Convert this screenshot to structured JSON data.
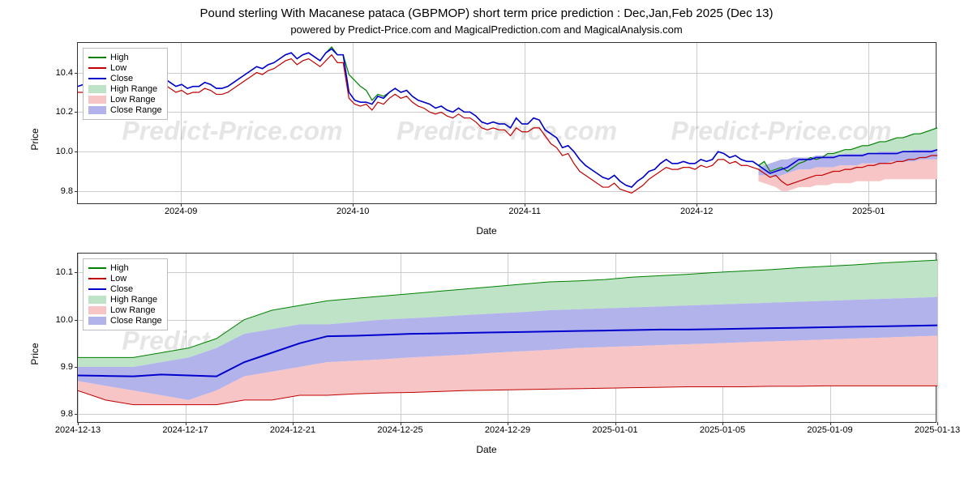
{
  "title": "Pound sterling With Macanese pataca (GBPMOP) short term price prediction : Dec,Jan,Feb 2025 (Dec 13)",
  "subtitle": "powered by Predict-Price.com and MagicalPrediction.com and MagicalAnalysis.com",
  "watermark_text": "Predict-Price.com",
  "colors": {
    "high_line": "#008000",
    "low_line": "#c00000",
    "close_line": "#0000cc",
    "high_range": "#bfe3c7",
    "low_range": "#f7c5c5",
    "close_range": "#b3b3ec",
    "grid": "#cccccc",
    "border": "#333333",
    "bg": "#ffffff",
    "text": "#000000"
  },
  "legend_labels": {
    "high": "High",
    "low": "Low",
    "close": "Close",
    "high_range": "High Range",
    "low_range": "Low Range",
    "close_range": "Close Range"
  },
  "axis_labels": {
    "x": "Date",
    "y": "Price"
  },
  "chart1": {
    "type": "line+range",
    "ylim": [
      9.73,
      10.55
    ],
    "yticks": [
      9.8,
      10.0,
      10.2,
      10.4
    ],
    "ytick_labels": [
      "9.8",
      "10.0",
      "10.2",
      "10.4"
    ],
    "xticks": [
      "2024-09",
      "2024-10",
      "2024-11",
      "2024-12",
      "2025-01"
    ],
    "n_points": 150,
    "high": [
      10.33,
      10.34,
      10.32,
      10.33,
      10.3,
      10.29,
      10.34,
      10.33,
      10.34,
      10.3,
      10.3,
      10.33,
      10.36,
      10.34,
      10.38,
      10.37,
      10.35,
      10.33,
      10.34,
      10.32,
      10.33,
      10.33,
      10.35,
      10.34,
      10.32,
      10.32,
      10.33,
      10.35,
      10.37,
      10.39,
      10.41,
      10.43,
      10.42,
      10.44,
      10.45,
      10.47,
      10.49,
      10.5,
      10.47,
      10.49,
      10.5,
      10.48,
      10.46,
      10.5,
      10.53,
      10.49,
      10.49,
      10.39,
      10.36,
      10.33,
      10.31,
      10.26,
      10.29,
      10.28,
      10.3,
      10.32,
      10.3,
      10.31,
      10.28,
      10.26,
      10.25,
      10.24,
      10.22,
      10.23,
      10.21,
      10.2,
      10.22,
      10.2,
      10.2,
      10.18,
      10.15,
      10.14,
      10.15,
      10.14,
      10.14,
      10.12,
      10.17,
      10.14,
      10.14,
      10.17,
      10.16,
      10.11,
      10.09,
      10.07,
      10.02,
      10.03,
      10.0,
      9.96,
      9.93,
      9.91,
      9.89,
      9.87,
      9.86,
      9.88,
      9.85,
      9.83,
      9.82,
      9.85,
      9.87,
      9.9,
      9.91,
      9.94,
      9.96,
      9.94,
      9.94,
      9.95,
      9.94,
      9.94,
      9.96,
      9.95,
      9.96,
      10.0,
      9.99,
      9.97,
      9.98,
      9.96,
      9.95,
      9.95,
      9.93,
      9.95,
      9.9,
      9.91,
      9.92,
      9.9,
      9.92,
      9.94,
      9.95,
      9.97,
      9.96,
      9.97,
      9.99,
      9.99,
      10.0,
      10.01,
      10.01,
      10.02,
      10.03,
      10.03,
      10.04,
      10.05,
      10.05,
      10.06,
      10.07,
      10.07,
      10.08,
      10.09,
      10.09,
      10.1,
      10.11,
      10.12
    ],
    "low": [
      10.3,
      10.3,
      10.29,
      10.29,
      10.27,
      10.24,
      10.27,
      10.3,
      10.31,
      10.27,
      10.28,
      10.3,
      10.33,
      10.31,
      10.35,
      10.34,
      10.32,
      10.3,
      10.31,
      10.29,
      10.3,
      10.3,
      10.32,
      10.31,
      10.29,
      10.29,
      10.3,
      10.32,
      10.34,
      10.36,
      10.38,
      10.4,
      10.39,
      10.41,
      10.42,
      10.44,
      10.46,
      10.47,
      10.44,
      10.46,
      10.47,
      10.45,
      10.43,
      10.46,
      10.49,
      10.45,
      10.45,
      10.27,
      10.24,
      10.23,
      10.24,
      10.21,
      10.25,
      10.24,
      10.27,
      10.29,
      10.27,
      10.28,
      10.25,
      10.23,
      10.22,
      10.2,
      10.19,
      10.2,
      10.18,
      10.17,
      10.19,
      10.17,
      10.17,
      10.15,
      10.12,
      10.11,
      10.12,
      10.11,
      10.11,
      10.08,
      10.12,
      10.1,
      10.1,
      10.12,
      10.12,
      10.08,
      10.04,
      10.02,
      9.98,
      9.99,
      9.94,
      9.9,
      9.88,
      9.86,
      9.84,
      9.82,
      9.82,
      9.84,
      9.81,
      9.8,
      9.79,
      9.81,
      9.83,
      9.86,
      9.88,
      9.9,
      9.92,
      9.91,
      9.91,
      9.92,
      9.92,
      9.91,
      9.93,
      9.92,
      9.93,
      9.96,
      9.96,
      9.94,
      9.95,
      9.93,
      9.93,
      9.92,
      9.91,
      9.89,
      9.87,
      9.88,
      9.85,
      9.83,
      9.84,
      9.85,
      9.86,
      9.87,
      9.88,
      9.88,
      9.89,
      9.9,
      9.9,
      9.91,
      9.91,
      9.92,
      9.92,
      9.93,
      9.93,
      9.94,
      9.94,
      9.94,
      9.95,
      9.95,
      9.96,
      9.96,
      9.97,
      9.97,
      9.98,
      9.98
    ],
    "close": [
      10.33,
      10.34,
      10.32,
      10.33,
      10.3,
      10.26,
      10.27,
      10.33,
      10.34,
      10.3,
      10.3,
      10.33,
      10.36,
      10.34,
      10.38,
      10.37,
      10.35,
      10.33,
      10.34,
      10.32,
      10.33,
      10.33,
      10.35,
      10.34,
      10.32,
      10.32,
      10.33,
      10.35,
      10.37,
      10.39,
      10.41,
      10.43,
      10.42,
      10.44,
      10.45,
      10.47,
      10.49,
      10.5,
      10.47,
      10.49,
      10.5,
      10.48,
      10.46,
      10.5,
      10.52,
      10.49,
      10.49,
      10.3,
      10.26,
      10.25,
      10.25,
      10.24,
      10.28,
      10.27,
      10.3,
      10.32,
      10.3,
      10.31,
      10.28,
      10.26,
      10.25,
      10.24,
      10.22,
      10.23,
      10.21,
      10.2,
      10.22,
      10.2,
      10.2,
      10.18,
      10.15,
      10.14,
      10.15,
      10.14,
      10.14,
      10.12,
      10.17,
      10.14,
      10.14,
      10.17,
      10.16,
      10.11,
      10.09,
      10.07,
      10.02,
      10.03,
      10.0,
      9.96,
      9.93,
      9.91,
      9.89,
      9.87,
      9.86,
      9.88,
      9.85,
      9.83,
      9.82,
      9.85,
      9.87,
      9.9,
      9.91,
      9.94,
      9.96,
      9.94,
      9.94,
      9.95,
      9.94,
      9.94,
      9.96,
      9.95,
      9.96,
      10.0,
      9.99,
      9.97,
      9.98,
      9.96,
      9.95,
      9.95,
      9.93,
      9.91,
      9.89,
      9.9,
      9.91,
      9.92,
      9.94,
      9.96,
      9.96,
      9.96,
      9.97,
      9.97,
      9.97,
      9.97,
      9.98,
      9.98,
      9.98,
      9.98,
      9.98,
      9.99,
      9.99,
      9.99,
      9.99,
      9.99,
      9.99,
      10.0,
      10.0,
      10.0,
      10.0,
      10.0,
      10.0,
      10.01
    ],
    "xtick_positions": [
      0.12,
      0.32,
      0.52,
      0.72,
      0.92
    ],
    "forecast_start_index": 118,
    "range_bottom_high": [
      9.91,
      9.93,
      9.94,
      9.95,
      9.96,
      9.96,
      9.97,
      9.97,
      9.97,
      9.97,
      9.98,
      9.98,
      9.98,
      9.98,
      9.98,
      9.99,
      9.99,
      9.99,
      9.99,
      9.99,
      9.99,
      10.0,
      10.0,
      10.0,
      10.0,
      10.0,
      10.0,
      10.01,
      10.01,
      10.01,
      10.01,
      10.01
    ],
    "range_bottom_close": [
      9.88,
      9.88,
      9.88,
      9.87,
      9.88,
      9.89,
      9.9,
      9.91,
      9.91,
      9.91,
      9.92,
      9.92,
      9.92,
      9.92,
      9.93,
      9.93,
      9.93,
      9.93,
      9.94,
      9.94,
      9.94,
      9.94,
      9.94,
      9.95,
      9.95,
      9.95,
      9.95,
      9.95,
      9.96,
      9.96,
      9.96,
      9.96
    ],
    "range_bottom_low": [
      9.85,
      9.84,
      9.83,
      9.82,
      9.8,
      9.8,
      9.81,
      9.82,
      9.82,
      9.82,
      9.83,
      9.83,
      9.83,
      9.84,
      9.84,
      9.84,
      9.84,
      9.85,
      9.85,
      9.85,
      9.85,
      9.85,
      9.86,
      9.86,
      9.86,
      9.86,
      9.86,
      9.86,
      9.86,
      9.86,
      9.86,
      9.86
    ]
  },
  "chart2": {
    "type": "line+range",
    "ylim": [
      9.78,
      10.14
    ],
    "yticks": [
      9.8,
      9.9,
      10.0,
      10.1
    ],
    "ytick_labels": [
      "9.8",
      "9.9",
      "10.0",
      "10.1"
    ],
    "xticks": [
      "2024-12-13",
      "2024-12-17",
      "2024-12-21",
      "2024-12-25",
      "2024-12-29",
      "2025-01-01",
      "2025-01-05",
      "2025-01-09",
      "2025-01-13"
    ],
    "xtick_positions": [
      0.0,
      0.125,
      0.25,
      0.375,
      0.5,
      0.625,
      0.75,
      0.875,
      1.0
    ],
    "n_points": 32,
    "close": [
      9.882,
      9.881,
      9.88,
      9.884,
      9.882,
      9.88,
      9.91,
      9.93,
      9.95,
      9.965,
      9.966,
      9.968,
      9.97,
      9.971,
      9.972,
      9.973,
      9.974,
      9.975,
      9.976,
      9.977,
      9.978,
      9.979,
      9.979,
      9.98,
      9.981,
      9.982,
      9.983,
      9.984,
      9.985,
      9.986,
      9.987,
      9.988
    ],
    "high_top": [
      9.92,
      9.92,
      9.92,
      9.93,
      9.94,
      9.96,
      10.0,
      10.02,
      10.03,
      10.04,
      10.045,
      10.05,
      10.055,
      10.06,
      10.065,
      10.07,
      10.075,
      10.08,
      10.082,
      10.085,
      10.09,
      10.093,
      10.096,
      10.1,
      10.103,
      10.106,
      10.11,
      10.113,
      10.116,
      10.12,
      10.123,
      10.126
    ],
    "high_bottom": [
      9.9,
      9.9,
      9.9,
      9.91,
      9.92,
      9.94,
      9.97,
      9.98,
      9.99,
      9.99,
      9.995,
      10.0,
      10.003,
      10.006,
      10.01,
      10.013,
      10.016,
      10.02,
      10.022,
      10.024,
      10.026,
      10.028,
      10.03,
      10.032,
      10.034,
      10.036,
      10.038,
      10.04,
      10.042,
      10.044,
      10.046,
      10.048
    ],
    "close_top": [
      9.9,
      9.9,
      9.9,
      9.91,
      9.92,
      9.94,
      9.97,
      9.98,
      9.99,
      9.99,
      9.995,
      10.0,
      10.003,
      10.006,
      10.01,
      10.013,
      10.016,
      10.02,
      10.022,
      10.024,
      10.026,
      10.028,
      10.03,
      10.032,
      10.034,
      10.036,
      10.038,
      10.04,
      10.042,
      10.044,
      10.046,
      10.048
    ],
    "close_bottom": [
      9.87,
      9.86,
      9.85,
      9.84,
      9.83,
      9.85,
      9.88,
      9.89,
      9.9,
      9.91,
      9.913,
      9.916,
      9.92,
      9.923,
      9.926,
      9.93,
      9.933,
      9.936,
      9.94,
      9.942,
      9.944,
      9.946,
      9.948,
      9.95,
      9.952,
      9.954,
      9.956,
      9.958,
      9.96,
      9.962,
      9.964,
      9.966
    ],
    "low_top": [
      9.87,
      9.86,
      9.85,
      9.84,
      9.83,
      9.85,
      9.88,
      9.89,
      9.9,
      9.91,
      9.913,
      9.916,
      9.92,
      9.923,
      9.926,
      9.93,
      9.933,
      9.936,
      9.94,
      9.942,
      9.944,
      9.946,
      9.948,
      9.95,
      9.952,
      9.954,
      9.956,
      9.958,
      9.96,
      9.962,
      9.964,
      9.966
    ],
    "low_bottom": [
      9.85,
      9.83,
      9.82,
      9.82,
      9.82,
      9.82,
      9.83,
      9.83,
      9.84,
      9.84,
      9.843,
      9.845,
      9.846,
      9.848,
      9.85,
      9.851,
      9.852,
      9.853,
      9.854,
      9.855,
      9.856,
      9.857,
      9.858,
      9.858,
      9.858,
      9.859,
      9.859,
      9.86,
      9.86,
      9.86,
      9.86,
      9.86
    ]
  }
}
